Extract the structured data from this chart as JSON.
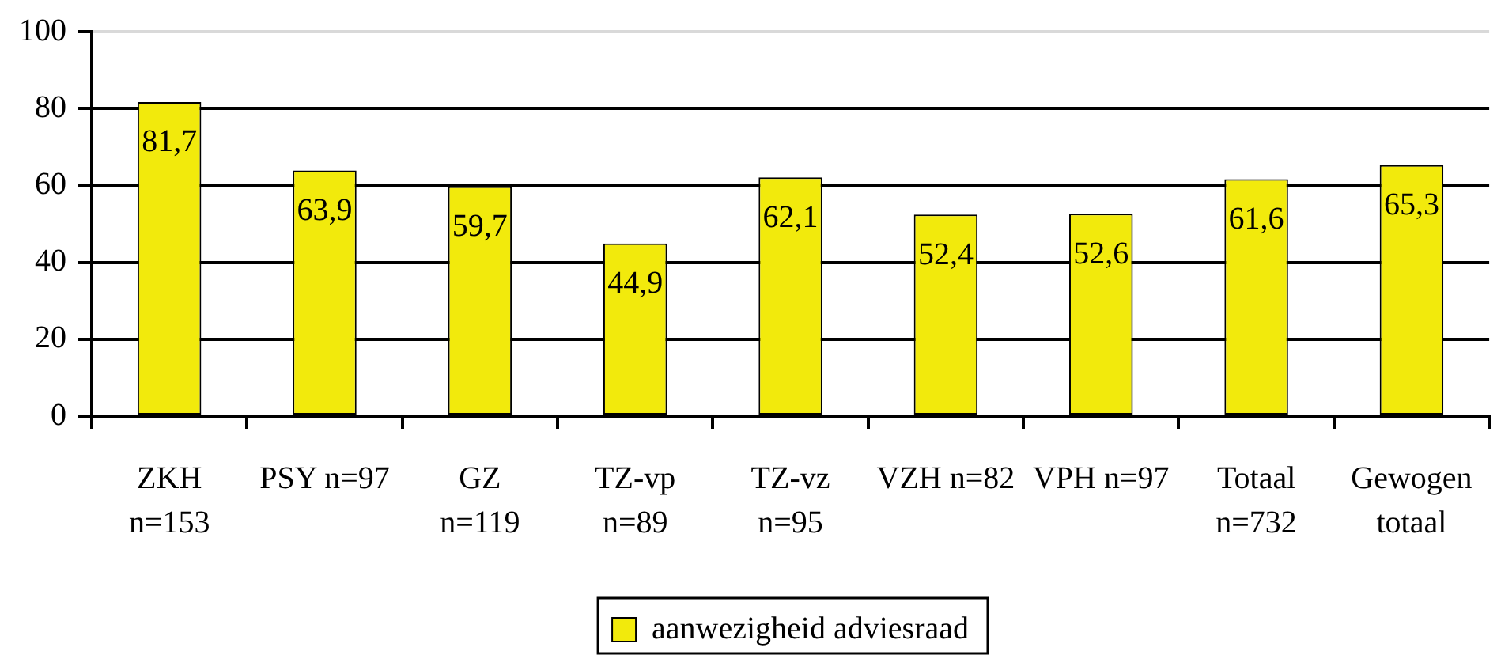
{
  "chart_data": {
    "type": "bar",
    "categories": [
      "ZKH\nn=153",
      "PSY n=97",
      "GZ\nn=119",
      "TZ-vp\nn=89",
      "TZ-vz\nn=95",
      "VZH n=82",
      "VPH n=97",
      "Totaal\nn=732",
      "Gewogen\ntotaal"
    ],
    "series": [
      {
        "name": "aanwezigheid adviesraad",
        "color": "#f2ea0c",
        "values": [
          81.7,
          63.9,
          59.7,
          44.9,
          62.1,
          52.4,
          52.6,
          61.6,
          65.3
        ],
        "value_labels": [
          "81,7",
          "63,9",
          "59,7",
          "44,9",
          "62,1",
          "52,4",
          "52,6",
          "61,6",
          "65,3"
        ]
      }
    ],
    "ylim": [
      0,
      100
    ],
    "yticks": [
      0,
      20,
      40,
      60,
      80,
      100
    ],
    "grid": "y",
    "legend": "bottom"
  }
}
